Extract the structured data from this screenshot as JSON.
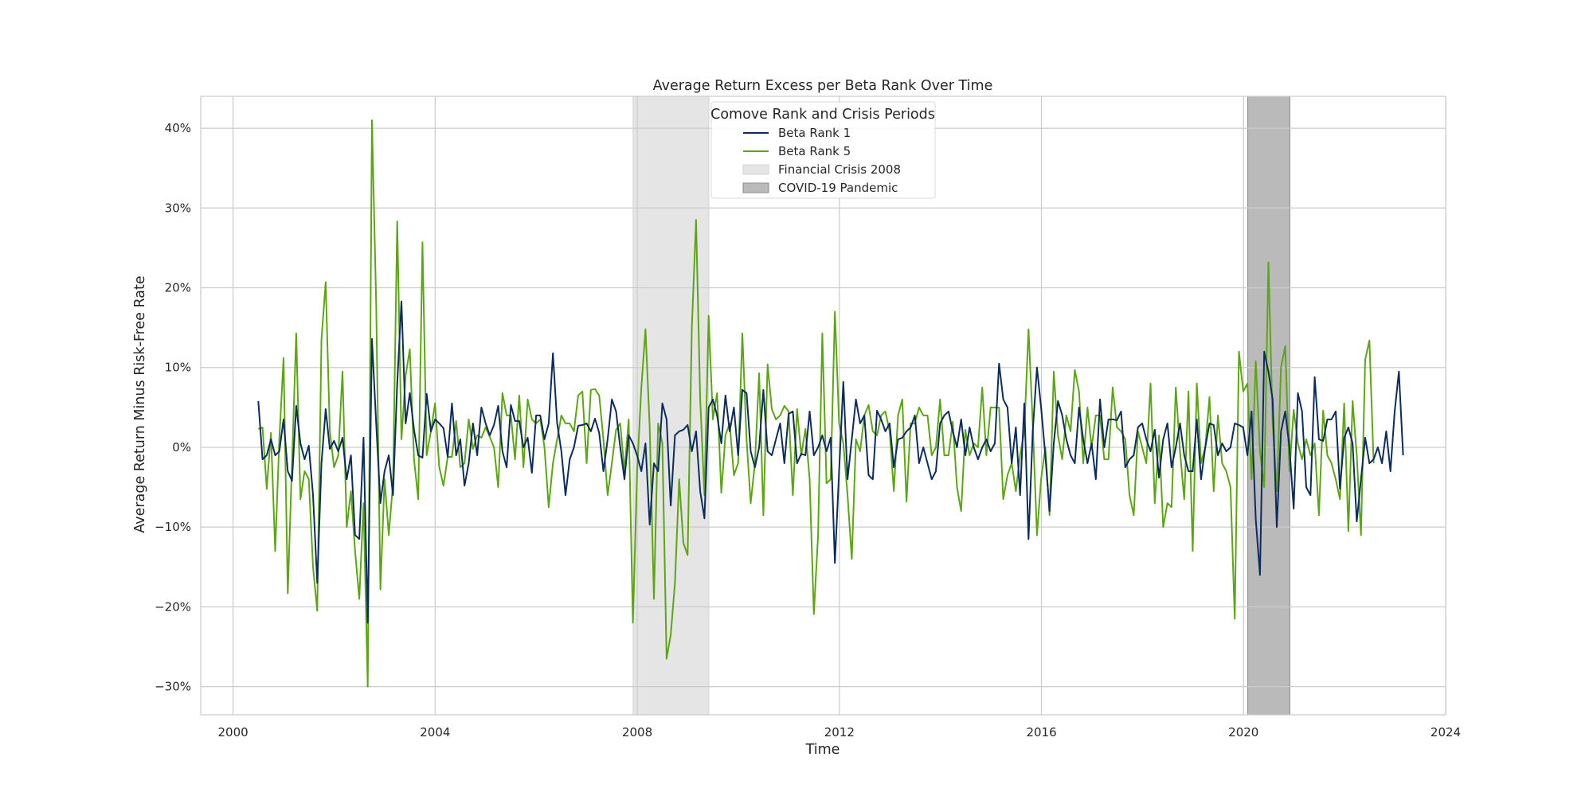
{
  "chart_data": {
    "type": "line",
    "title": "Average Return Excess per Beta Rank Over Time",
    "xlabel": "Time",
    "ylabel": "Average Return Minus Risk-Free Rate",
    "xlim": [
      1999.36,
      2024.0
    ],
    "ylim": [
      -0.3353,
      0.44
    ],
    "xticks": [
      2000,
      2004,
      2008,
      2012,
      2016,
      2020,
      2024
    ],
    "yticks": [
      -0.3,
      -0.2,
      -0.1,
      0.0,
      0.1,
      0.2,
      0.3,
      0.4
    ],
    "ytick_labels": [
      "−30%",
      "−20%",
      "−10%",
      "0%",
      "10%",
      "20%",
      "30%",
      "40%"
    ],
    "grid": true,
    "legend": {
      "title": "Comove Rank and Crisis Periods",
      "location": "top-center",
      "entries": [
        "Beta Rank 1",
        "Beta Rank 5",
        "Financial Crisis 2008",
        "COVID-19 Pandemic"
      ]
    },
    "shaded_regions": [
      {
        "name": "Financial Crisis 2008",
        "x": [
          2007.917,
          2009.417
        ],
        "color": "#d3d3d3"
      },
      {
        "name": "COVID-19 Pandemic",
        "x": [
          2020.083,
          2020.917
        ],
        "color": "#8c8c8c"
      }
    ],
    "x_start": 2000.5,
    "x_step": 0.0833,
    "series": [
      {
        "name": "Beta Rank 1",
        "color": "#0d2c5e",
        "values": [
          0.058,
          -0.015,
          -0.01,
          0.01,
          -0.01,
          -0.005,
          0.035,
          -0.03,
          -0.042,
          0.052,
          0.005,
          -0.015,
          0.002,
          -0.06,
          -0.17,
          -0.02,
          0.048,
          -0.002,
          0.008,
          -0.005,
          0.012,
          -0.04,
          -0.01,
          -0.11,
          -0.115,
          0.012,
          -0.22,
          0.136,
          0.03,
          -0.07,
          -0.03,
          -0.01,
          -0.06,
          0.08,
          0.183,
          0.03,
          0.068,
          0.022,
          -0.01,
          -0.013,
          0.067,
          0.02,
          0.035,
          0.03,
          0.024,
          -0.012,
          0.055,
          -0.01,
          0.01,
          -0.048,
          -0.02,
          0.03,
          -0.01,
          0.05,
          0.03,
          0.015,
          0.028,
          0.052,
          -0.005,
          -0.025,
          0.053,
          0.033,
          0.033,
          0.0,
          0.012,
          -0.032,
          0.04,
          0.04,
          0.01,
          0.03,
          0.118,
          0.03,
          -0.005,
          -0.06,
          -0.015,
          0.0,
          0.027,
          0.028,
          0.03,
          0.02,
          0.036,
          0.018,
          -0.03,
          0.01,
          0.06,
          0.045,
          0.0,
          -0.04,
          0.015,
          0.005,
          -0.01,
          -0.03,
          0.005,
          -0.097,
          -0.02,
          -0.03,
          0.055,
          0.035,
          -0.073,
          0.015,
          0.02,
          0.022,
          0.028,
          -0.005,
          0.02,
          -0.055,
          -0.089,
          0.05,
          0.06,
          0.04,
          0.005,
          0.065,
          0.02,
          0.05,
          -0.01,
          0.072,
          0.068,
          -0.005,
          -0.025,
          0.0,
          0.072,
          -0.005,
          -0.01,
          0.01,
          0.03,
          -0.02,
          0.042,
          0.045,
          -0.02,
          -0.008,
          -0.01,
          0.045,
          -0.01,
          0.0,
          0.015,
          -0.005,
          0.012,
          -0.145,
          -0.03,
          0.082,
          -0.04,
          0.01,
          0.06,
          0.03,
          0.04,
          -0.035,
          -0.04,
          0.046,
          0.035,
          0.02,
          0.03,
          -0.025,
          0.01,
          0.012,
          0.02,
          0.025,
          0.04,
          -0.02,
          0.0,
          -0.02,
          -0.04,
          -0.03,
          0.03,
          0.04,
          0.045,
          0.02,
          0.0,
          0.035,
          -0.01,
          0.025,
          0.0,
          -0.015,
          0.0,
          0.01,
          -0.005,
          0.005,
          0.105,
          0.06,
          0.05,
          -0.02,
          0.025,
          -0.06,
          0.055,
          -0.115,
          0.02,
          0.1,
          0.05,
          -0.01,
          -0.08,
          0.005,
          0.058,
          0.04,
          0.01,
          -0.01,
          -0.02,
          0.05,
          0.01,
          -0.02,
          0.005,
          -0.04,
          0.06,
          0.0,
          0.035,
          0.035,
          0.034,
          0.045,
          -0.025,
          -0.015,
          -0.01,
          0.025,
          0.03,
          0.01,
          -0.005,
          0.022,
          -0.038,
          0.01,
          0.03,
          -0.025,
          0.0,
          0.03,
          -0.01,
          -0.03,
          -0.03,
          0.035,
          -0.04,
          0.0,
          0.03,
          0.028,
          -0.01,
          0.005,
          -0.005,
          0.0,
          0.03,
          0.028,
          0.025,
          -0.01,
          0.045,
          -0.09,
          -0.16,
          0.12,
          0.095,
          0.06,
          -0.1,
          0.02,
          0.045,
          0.0,
          -0.077,
          0.068,
          0.045,
          -0.05,
          -0.06,
          0.088,
          0.01,
          0.008,
          0.035,
          0.035,
          0.045,
          -0.052,
          0.012,
          0.025,
          0.005,
          -0.093,
          -0.04,
          0.012,
          -0.02,
          -0.015,
          0.0,
          -0.02,
          0.02,
          -0.03,
          0.045,
          0.095,
          -0.01
        ]
      },
      {
        "name": "Beta Rank 5",
        "color": "#5da513",
        "values": [
          0.023,
          0.025,
          -0.052,
          0.018,
          -0.13,
          0.01,
          0.112,
          -0.183,
          -0.02,
          0.143,
          -0.065,
          -0.03,
          -0.04,
          -0.15,
          -0.205,
          0.135,
          0.207,
          0.02,
          -0.025,
          -0.01,
          0.095,
          -0.1,
          -0.055,
          -0.13,
          -0.19,
          -0.07,
          -0.3,
          0.41,
          0.18,
          -0.178,
          -0.04,
          -0.11,
          -0.045,
          0.283,
          0.01,
          0.09,
          0.123,
          -0.015,
          -0.065,
          0.257,
          -0.01,
          0.02,
          0.055,
          -0.025,
          -0.048,
          -0.012,
          -0.012,
          0.033,
          -0.025,
          -0.02,
          0.035,
          -0.002,
          0.015,
          0.012,
          0.025,
          0.013,
          0.0,
          -0.05,
          0.068,
          0.04,
          0.04,
          -0.015,
          0.065,
          -0.025,
          0.06,
          0.035,
          0.03,
          0.035,
          0.0,
          -0.075,
          -0.02,
          0.01,
          0.04,
          0.03,
          0.03,
          0.02,
          0.065,
          0.07,
          -0.02,
          0.072,
          0.073,
          0.065,
          0.01,
          -0.06,
          -0.02,
          0.022,
          0.03,
          -0.03,
          0.035,
          -0.22,
          -0.03,
          0.075,
          0.148,
          0.025,
          -0.19,
          0.03,
          0.005,
          -0.265,
          -0.235,
          -0.17,
          -0.04,
          -0.12,
          -0.135,
          0.15,
          0.285,
          0.06,
          -0.06,
          0.165,
          0.035,
          0.068,
          -0.057,
          0.015,
          0.03,
          -0.035,
          -0.02,
          0.143,
          0.01,
          -0.07,
          -0.02,
          0.093,
          -0.085,
          0.104,
          0.048,
          0.035,
          0.04,
          0.052,
          0.045,
          -0.06,
          0.048,
          -0.01,
          0.023,
          -0.04,
          -0.209,
          -0.11,
          0.143,
          -0.045,
          -0.04,
          0.17,
          0.03,
          0.005,
          -0.06,
          -0.14,
          0.01,
          -0.005,
          0.04,
          0.053,
          0.02,
          0.015,
          0.04,
          0.045,
          0.02,
          -0.055,
          0.04,
          0.06,
          -0.068,
          0.03,
          0.03,
          0.05,
          0.04,
          0.04,
          -0.01,
          0.0,
          0.06,
          -0.01,
          -0.01,
          0.032,
          -0.05,
          -0.08,
          0.022,
          -0.01,
          0.005,
          0.0,
          0.075,
          -0.01,
          0.05,
          0.05,
          0.05,
          -0.065,
          -0.035,
          -0.02,
          -0.055,
          -0.01,
          0.02,
          0.148,
          0.03,
          -0.11,
          -0.04,
          0.0,
          -0.085,
          0.095,
          0.015,
          -0.015,
          0.04,
          0.02,
          0.097,
          0.07,
          -0.02,
          0.05,
          0.0,
          0.04,
          0.04,
          -0.015,
          -0.015,
          0.075,
          0.025,
          0.02,
          0.01,
          -0.06,
          -0.085,
          0.02,
          0.0,
          -0.02,
          0.08,
          -0.07,
          0.015,
          -0.1,
          -0.07,
          -0.075,
          0.075,
          -0.005,
          -0.065,
          0.07,
          -0.13,
          0.08,
          -0.02,
          0.0,
          0.063,
          -0.055,
          0.04,
          -0.02,
          -0.03,
          -0.05,
          -0.215,
          0.12,
          0.07,
          0.08,
          -0.04,
          0.108,
          -0.005,
          -0.05,
          0.232,
          0.03,
          -0.055,
          0.1,
          0.127,
          -0.03,
          0.047,
          0.005,
          -0.015,
          0.01,
          -0.01,
          0.005,
          -0.085,
          0.046,
          -0.01,
          -0.02,
          -0.04,
          -0.065,
          0.055,
          -0.105,
          0.058,
          -0.01,
          -0.11,
          0.11,
          0.134,
          -0.02
        ]
      }
    ]
  }
}
